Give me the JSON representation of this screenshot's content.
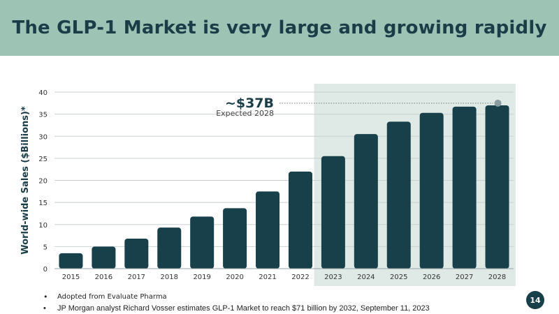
{
  "slide": {
    "title": "The GLP-1 Market is very large and growing rapidly",
    "page_number": "14"
  },
  "footnotes": [
    "Adopted from Evaluate Pharma",
    "JP Morgan analyst Richard Vosser estimates GLP-1 Market to reach $71 billion by 2032, September 11, 2023"
  ],
  "colors": {
    "title_band": "#9dc3b5",
    "title_text": "#1a3d48",
    "bar": "#17404a",
    "forecast_band": "#dfe9e5",
    "marker": "#8a9ba1"
  },
  "chart_data": {
    "type": "bar",
    "title": "",
    "xlabel": "",
    "ylabel": "World-wide Sales ($Billions)*",
    "categories": [
      "2015",
      "2016",
      "2017",
      "2018",
      "2019",
      "2020",
      "2021",
      "2022",
      "2023",
      "2024",
      "2025",
      "2026",
      "2027",
      "2028"
    ],
    "values": [
      3.5,
      5.0,
      6.8,
      9.3,
      11.8,
      13.7,
      17.5,
      22.0,
      25.5,
      30.5,
      33.3,
      35.3,
      36.7,
      37.0
    ],
    "ylim": [
      0,
      40
    ],
    "yticks": [
      0,
      5,
      10,
      15,
      20,
      25,
      30,
      35,
      40
    ],
    "grid": true,
    "forecast_range": [
      "2023",
      "2028"
    ],
    "annotation": {
      "label": "~$37B",
      "sublabel": "Expected 2028",
      "target_category": "2028",
      "target_value": 37.5
    }
  }
}
